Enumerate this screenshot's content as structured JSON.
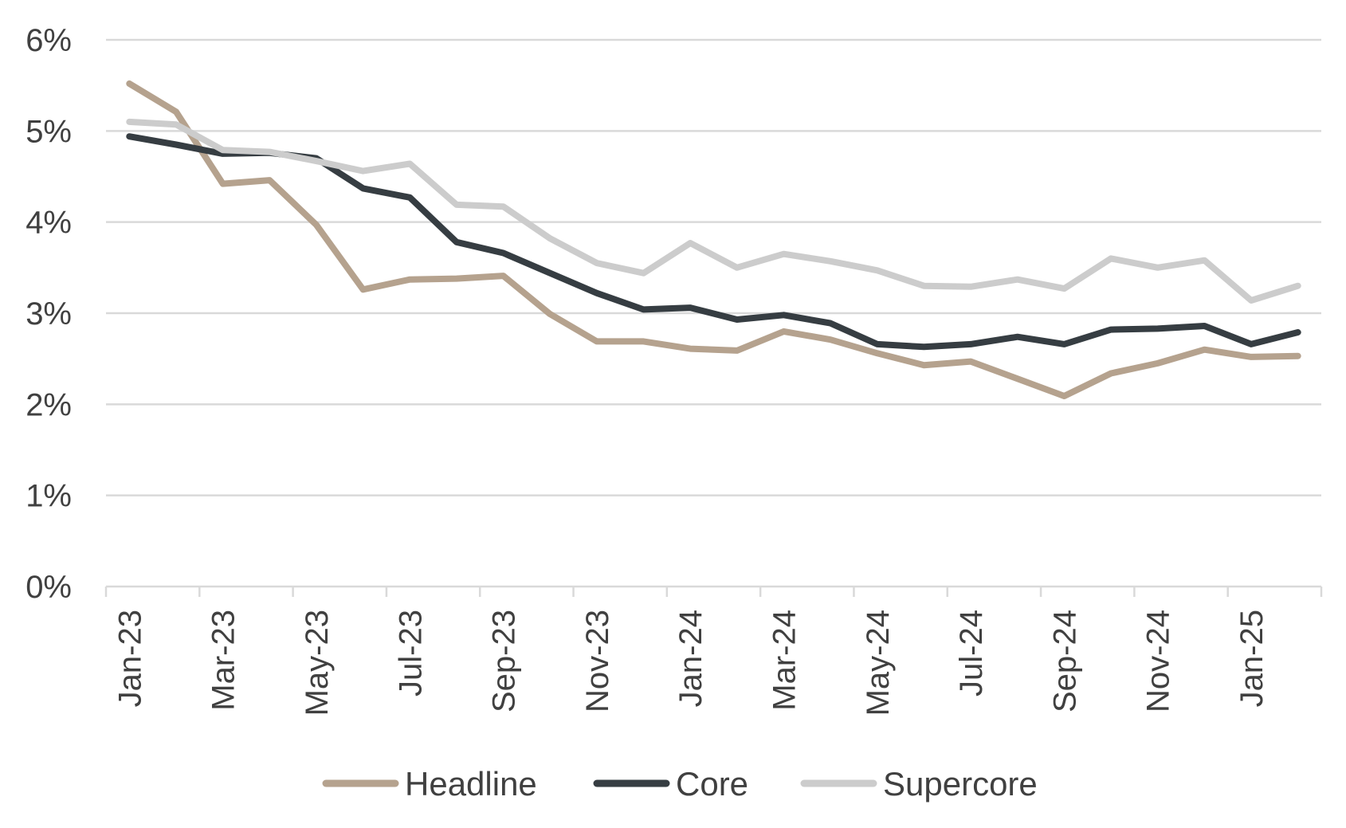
{
  "chart_data": {
    "type": "line",
    "title": "",
    "xlabel": "",
    "ylabel": "",
    "ylim": [
      0,
      6
    ],
    "yticks": [
      "0%",
      "1%",
      "2%",
      "3%",
      "4%",
      "5%",
      "6%"
    ],
    "ytick_values": [
      0,
      1,
      2,
      3,
      4,
      5,
      6
    ],
    "grid": true,
    "legend_position": "bottom",
    "categories": [
      "Jan-23",
      "Feb-23",
      "Mar-23",
      "Apr-23",
      "May-23",
      "Jun-23",
      "Jul-23",
      "Aug-23",
      "Sep-23",
      "Oct-23",
      "Nov-23",
      "Dec-23",
      "Jan-24",
      "Feb-24",
      "Mar-24",
      "Apr-24",
      "May-24",
      "Jun-24",
      "Jul-24",
      "Aug-24",
      "Sep-24",
      "Oct-24",
      "Nov-24",
      "Dec-24",
      "Jan-25",
      "Feb-25"
    ],
    "xtick_labels": [
      "Jan-23",
      "Mar-23",
      "May-23",
      "Jul-23",
      "Sep-23",
      "Nov-23",
      "Jan-24",
      "Mar-24",
      "May-24",
      "Jul-24",
      "Sep-24",
      "Nov-24",
      "Jan-25"
    ],
    "series": [
      {
        "name": "Headline",
        "color": "#b5a28e",
        "values": [
          5.52,
          5.21,
          4.42,
          4.46,
          3.97,
          3.26,
          3.37,
          3.38,
          3.41,
          2.99,
          2.69,
          2.69,
          2.61,
          2.59,
          2.8,
          2.71,
          2.56,
          2.43,
          2.47,
          2.28,
          2.09,
          2.34,
          2.45,
          2.6,
          2.52,
          2.53
        ]
      },
      {
        "name": "Core",
        "color": "#363d42",
        "values": [
          4.94,
          4.85,
          4.75,
          4.76,
          4.7,
          4.37,
          4.27,
          3.78,
          3.66,
          3.44,
          3.22,
          3.04,
          3.06,
          2.93,
          2.98,
          2.89,
          2.66,
          2.63,
          2.66,
          2.74,
          2.66,
          2.82,
          2.83,
          2.86,
          2.66,
          2.79
        ]
      },
      {
        "name": "Supercore",
        "color": "#cccccc",
        "values": [
          5.1,
          5.07,
          4.79,
          4.77,
          4.67,
          4.56,
          4.64,
          4.19,
          4.17,
          3.82,
          3.55,
          3.44,
          3.77,
          3.5,
          3.65,
          3.57,
          3.47,
          3.3,
          3.29,
          3.37,
          3.27,
          3.6,
          3.5,
          3.58,
          3.14,
          3.3
        ]
      }
    ]
  },
  "colors": {
    "grid": "#d9d9d9",
    "axis": "#d9d9d9",
    "text": "#404040"
  }
}
